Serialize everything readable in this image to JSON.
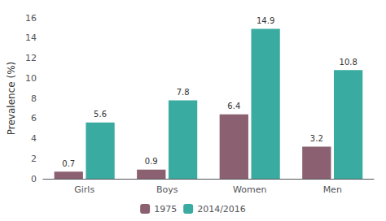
{
  "chart_data": {
    "type": "bar",
    "categories": [
      "Girls",
      "Boys",
      "Women",
      "Men"
    ],
    "series": [
      {
        "name": "1975",
        "color": "#8B6070",
        "values": [
          0.7,
          0.9,
          6.4,
          3.2
        ]
      },
      {
        "name": "2014/2016",
        "color": "#3AABA0",
        "values": [
          5.6,
          7.8,
          14.9,
          10.8
        ]
      }
    ],
    "ylabel": "Prevalence (%)",
    "ylim": [
      0,
      16
    ],
    "yticks": [
      0,
      2,
      4,
      6,
      8,
      10,
      12,
      14,
      16
    ],
    "grid": false,
    "legend": "bottom",
    "data_labels": true
  }
}
